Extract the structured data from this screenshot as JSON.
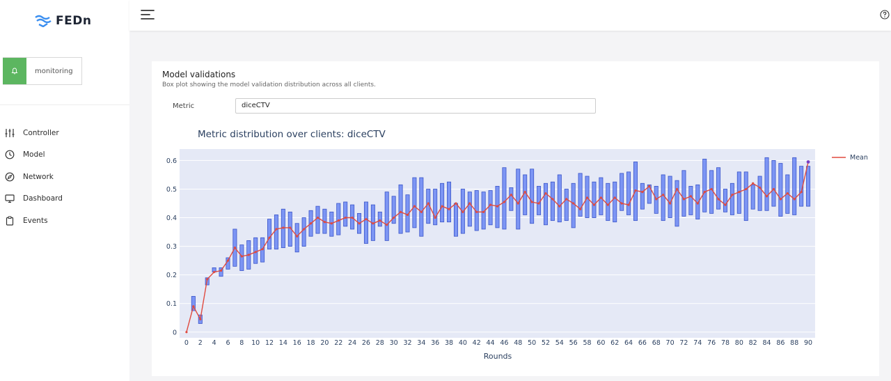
{
  "sidebar": {
    "logo_text": "FEDn",
    "monitoring_label": "monitoring",
    "items": [
      {
        "label": "Controller",
        "icon": "sliders-icon"
      },
      {
        "label": "Model",
        "icon": "clock-icon"
      },
      {
        "label": "Network",
        "icon": "compass-icon"
      },
      {
        "label": "Dashboard",
        "icon": "monitor-icon"
      },
      {
        "label": "Events",
        "icon": "clipboard-icon"
      }
    ]
  },
  "topbar": {
    "menu_icon": "hamburger-icon",
    "help_icon": "help-icon"
  },
  "card": {
    "title": "Model validations",
    "subtitle": "Box plot showing the model validation distribution across all clients.",
    "metric_label": "Metric",
    "metric_value": "diceCTV"
  },
  "colors": {
    "accent": "#5cb660",
    "box_fill": "#6a86f3",
    "box_stroke": "#3b55c9",
    "mean_line": "#e04a3f",
    "plot_bg": "#e5e9f6"
  },
  "chart_data": {
    "type": "box",
    "title": "Metric distribution over clients: diceCTV",
    "xlabel": "Rounds",
    "ylabel": "",
    "xlim": [
      -1,
      91
    ],
    "ylim": [
      -0.02,
      0.64
    ],
    "y_ticks": [
      0,
      0.1,
      0.2,
      0.3,
      0.4,
      0.5,
      0.6
    ],
    "y_tick_labels": [
      "0",
      "0.1",
      "0.2",
      "0.3",
      "0.4",
      "0.5",
      "0.6"
    ],
    "x_ticks": [
      0,
      2,
      4,
      6,
      8,
      10,
      12,
      14,
      16,
      18,
      20,
      22,
      24,
      26,
      28,
      30,
      32,
      34,
      36,
      38,
      40,
      42,
      44,
      46,
      48,
      50,
      52,
      54,
      56,
      58,
      60,
      62,
      64,
      66,
      68,
      70,
      72,
      74,
      76,
      78,
      80,
      82,
      84,
      86,
      88,
      90
    ],
    "legend": {
      "label": "Mean",
      "position": "top-right"
    },
    "rounds": [
      1,
      2,
      3,
      4,
      5,
      6,
      7,
      8,
      9,
      10,
      11,
      12,
      13,
      14,
      15,
      16,
      17,
      18,
      19,
      20,
      21,
      22,
      23,
      24,
      25,
      26,
      27,
      28,
      29,
      30,
      31,
      32,
      33,
      34,
      35,
      36,
      37,
      38,
      39,
      40,
      41,
      42,
      43,
      44,
      45,
      46,
      47,
      48,
      49,
      50,
      51,
      52,
      53,
      54,
      55,
      56,
      57,
      58,
      59,
      60,
      61,
      62,
      63,
      64,
      65,
      66,
      67,
      68,
      69,
      70,
      71,
      72,
      73,
      74,
      75,
      76,
      77,
      78,
      79,
      80,
      81,
      82,
      83,
      84,
      85,
      86,
      87,
      88,
      89,
      90
    ],
    "box_low": [
      0.075,
      0.03,
      0.165,
      0.21,
      0.195,
      0.22,
      0.23,
      0.215,
      0.22,
      0.24,
      0.245,
      0.29,
      0.29,
      0.295,
      0.3,
      0.28,
      0.3,
      0.335,
      0.345,
      0.345,
      0.335,
      0.34,
      0.37,
      0.36,
      0.345,
      0.31,
      0.32,
      0.37,
      0.32,
      0.38,
      0.345,
      0.35,
      0.365,
      0.335,
      0.38,
      0.375,
      0.385,
      0.385,
      0.335,
      0.345,
      0.37,
      0.355,
      0.36,
      0.375,
      0.365,
      0.36,
      0.425,
      0.36,
      0.41,
      0.38,
      0.41,
      0.375,
      0.39,
      0.385,
      0.39,
      0.365,
      0.405,
      0.4,
      0.4,
      0.41,
      0.39,
      0.385,
      0.425,
      0.41,
      0.39,
      0.43,
      0.45,
      0.415,
      0.39,
      0.4,
      0.37,
      0.405,
      0.41,
      0.395,
      0.42,
      0.415,
      0.43,
      0.42,
      0.41,
      0.415,
      0.39,
      0.43,
      0.425,
      0.425,
      0.44,
      0.405,
      0.415,
      0.41,
      0.44,
      0.44
    ],
    "box_high": [
      0.125,
      0.06,
      0.19,
      0.225,
      0.225,
      0.26,
      0.36,
      0.305,
      0.32,
      0.33,
      0.33,
      0.395,
      0.41,
      0.43,
      0.42,
      0.38,
      0.4,
      0.425,
      0.44,
      0.43,
      0.42,
      0.45,
      0.455,
      0.445,
      0.415,
      0.455,
      0.445,
      0.42,
      0.49,
      0.475,
      0.515,
      0.48,
      0.54,
      0.54,
      0.5,
      0.5,
      0.52,
      0.525,
      0.45,
      0.5,
      0.49,
      0.495,
      0.49,
      0.495,
      0.51,
      0.575,
      0.505,
      0.57,
      0.55,
      0.57,
      0.51,
      0.52,
      0.525,
      0.55,
      0.5,
      0.52,
      0.555,
      0.545,
      0.525,
      0.54,
      0.52,
      0.525,
      0.555,
      0.56,
      0.595,
      0.52,
      0.515,
      0.51,
      0.55,
      0.545,
      0.53,
      0.565,
      0.51,
      0.515,
      0.605,
      0.565,
      0.575,
      0.5,
      0.52,
      0.56,
      0.56,
      0.515,
      0.545,
      0.61,
      0.6,
      0.59,
      0.55,
      0.61,
      0.58,
      0.58
    ],
    "mean_x": [
      0,
      1,
      2,
      3,
      4,
      5,
      6,
      7,
      8,
      9,
      10,
      11,
      12,
      13,
      14,
      15,
      16,
      17,
      18,
      19,
      20,
      21,
      22,
      23,
      24,
      25,
      26,
      27,
      28,
      29,
      30,
      31,
      32,
      33,
      34,
      35,
      36,
      37,
      38,
      39,
      40,
      41,
      42,
      43,
      44,
      45,
      46,
      47,
      48,
      49,
      50,
      51,
      52,
      53,
      54,
      55,
      56,
      57,
      58,
      59,
      60,
      61,
      62,
      63,
      64,
      65,
      66,
      67,
      68,
      69,
      70,
      71,
      72,
      73,
      74,
      75,
      76,
      77,
      78,
      79,
      80,
      81,
      82,
      83,
      84,
      85,
      86,
      87,
      88,
      89,
      90
    ],
    "mean": [
      0,
      0.09,
      0.045,
      0.185,
      0.21,
      0.215,
      0.25,
      0.295,
      0.265,
      0.27,
      0.28,
      0.29,
      0.33,
      0.36,
      0.365,
      0.365,
      0.335,
      0.36,
      0.38,
      0.4,
      0.385,
      0.38,
      0.39,
      0.4,
      0.4,
      0.38,
      0.395,
      0.38,
      0.39,
      0.375,
      0.4,
      0.42,
      0.41,
      0.44,
      0.42,
      0.45,
      0.4,
      0.44,
      0.43,
      0.45,
      0.42,
      0.45,
      0.42,
      0.42,
      0.445,
      0.44,
      0.455,
      0.48,
      0.45,
      0.49,
      0.455,
      0.45,
      0.485,
      0.465,
      0.44,
      0.465,
      0.45,
      0.43,
      0.47,
      0.445,
      0.47,
      0.445,
      0.47,
      0.45,
      0.445,
      0.495,
      0.49,
      0.51,
      0.465,
      0.48,
      0.45,
      0.5,
      0.465,
      0.475,
      0.45,
      0.49,
      0.5,
      0.465,
      0.445,
      0.48,
      0.49,
      0.5,
      0.52,
      0.505,
      0.475,
      0.5,
      0.465,
      0.485,
      0.465,
      0.49,
      0.595
    ]
  }
}
